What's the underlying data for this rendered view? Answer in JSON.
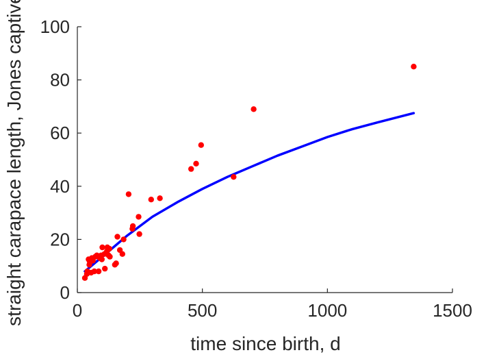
{
  "chart_data": {
    "type": "scatter",
    "xlabel": "time since birth, d",
    "ylabel": "straight carapace length, Jones captive",
    "xlim": [
      0,
      1500
    ],
    "ylim": [
      0,
      100
    ],
    "xticks": [
      0,
      500,
      1000,
      1500
    ],
    "yticks": [
      0,
      20,
      40,
      60,
      80,
      100
    ],
    "grid": false,
    "colors": {
      "points": "#ff0000",
      "fit": "#0000ff",
      "axis": "#262626"
    },
    "series": [
      {
        "type": "scatter",
        "points": [
          [
            30,
            5.5
          ],
          [
            38,
            7
          ],
          [
            40,
            8
          ],
          [
            45,
            12.5
          ],
          [
            48,
            10.5
          ],
          [
            50,
            11.5
          ],
          [
            55,
            7.5
          ],
          [
            58,
            13
          ],
          [
            62,
            12
          ],
          [
            68,
            8
          ],
          [
            72,
            13.5
          ],
          [
            78,
            14
          ],
          [
            85,
            8
          ],
          [
            90,
            13
          ],
          [
            95,
            14
          ],
          [
            98,
            12.5
          ],
          [
            100,
            17
          ],
          [
            108,
            14.5
          ],
          [
            110,
            9
          ],
          [
            118,
            15.5
          ],
          [
            120,
            17
          ],
          [
            125,
            14
          ],
          [
            128,
            16.5
          ],
          [
            130,
            13.5
          ],
          [
            150,
            10.5
          ],
          [
            155,
            11
          ],
          [
            160,
            21
          ],
          [
            170,
            16
          ],
          [
            180,
            14.5
          ],
          [
            185,
            20
          ],
          [
            205,
            37
          ],
          [
            220,
            24
          ],
          [
            222,
            25
          ],
          [
            245,
            28.5
          ],
          [
            248,
            22
          ],
          [
            295,
            35
          ],
          [
            330,
            35.5
          ],
          [
            455,
            46.5
          ],
          [
            475,
            48.5
          ],
          [
            495,
            55.5
          ],
          [
            625,
            43.5
          ],
          [
            705,
            69
          ],
          [
            1345,
            85
          ]
        ]
      },
      {
        "type": "line",
        "points": [
          [
            30,
            8
          ],
          [
            100,
            13.5
          ],
          [
            200,
            21.5
          ],
          [
            300,
            28.5
          ],
          [
            400,
            34
          ],
          [
            500,
            39
          ],
          [
            600,
            43.5
          ],
          [
            700,
            47.5
          ],
          [
            800,
            51.5
          ],
          [
            900,
            55
          ],
          [
            1000,
            58.5
          ],
          [
            1100,
            61.5
          ],
          [
            1200,
            64
          ],
          [
            1345,
            67.5
          ]
        ]
      }
    ]
  }
}
